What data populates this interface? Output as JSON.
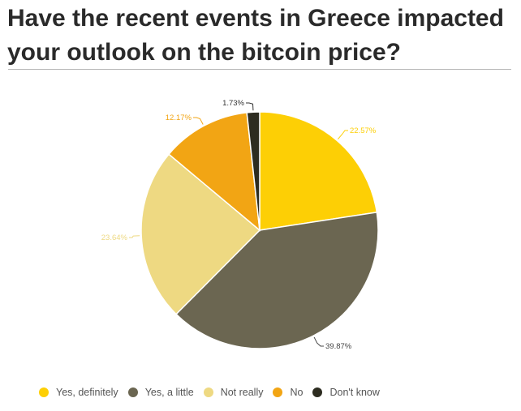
{
  "title": "Have the recent events in Greece impacted your outlook on the bitcoin price?",
  "chart_data": {
    "type": "pie",
    "title": "Have the recent events in Greece impacted your outlook on the bitcoin price?",
    "start": "top, clockwise",
    "slices": [
      {
        "name": "Yes, definitely",
        "value": 22.57,
        "label": "22.57%",
        "color": "#fdcf05"
      },
      {
        "name": "Yes, a little",
        "value": 39.87,
        "label": "39.87%",
        "color": "#6b6651"
      },
      {
        "name": "Not really",
        "value": 23.64,
        "label": "23.64%",
        "color": "#eed982"
      },
      {
        "name": "No",
        "value": 12.17,
        "label": "12.17%",
        "color": "#f2a514"
      },
      {
        "name": "Don't know",
        "value": 1.73,
        "label": "1.73%",
        "color": "#2d2c20"
      }
    ],
    "legend": {
      "placement": "bottom-left",
      "items": [
        "Yes, definitely",
        "Yes, a little",
        "Not really",
        "No",
        "Don't know"
      ]
    }
  },
  "colors": {
    "title_text": "#2a2a2a",
    "legend_text": "#555555",
    "rule": "#b5b5b5",
    "dark_label": "#333333"
  }
}
